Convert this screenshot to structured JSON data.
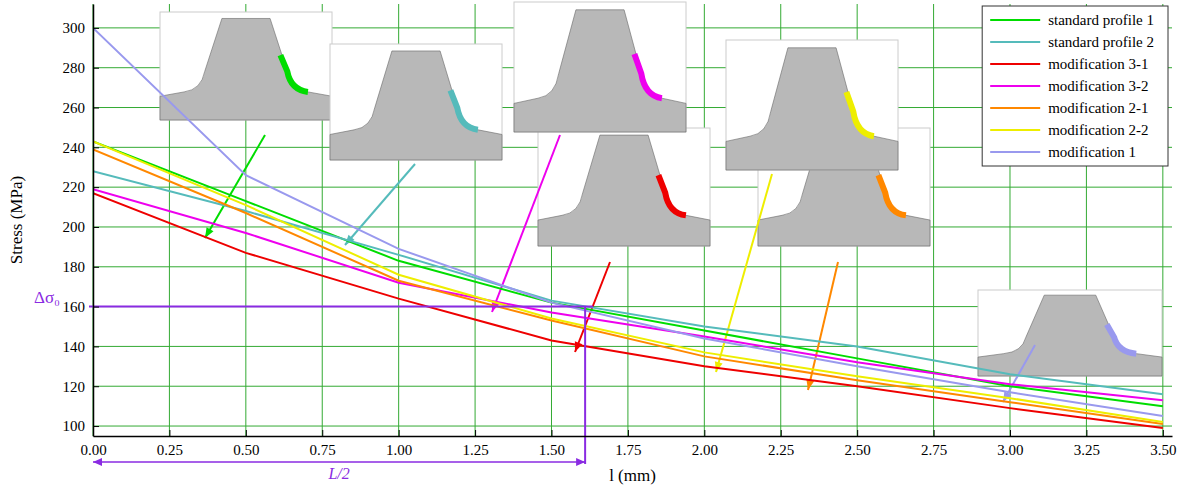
{
  "chart_data": {
    "type": "line",
    "x_label": "l (mm)",
    "y_label": "Stress (MPa)",
    "x": [
      0,
      0.5,
      1,
      1.5,
      2,
      2.5,
      3,
      3.5
    ],
    "xlim": [
      0,
      3.53
    ],
    "ylim": [
      95,
      312
    ],
    "xticks": [
      {
        "value": 0,
        "label": "0.00"
      },
      {
        "value": 0.25,
        "label": "0.25"
      },
      {
        "value": 0.5,
        "label": "0.50"
      },
      {
        "value": 0.75,
        "label": "0.75"
      },
      {
        "value": 1,
        "label": "1.00"
      },
      {
        "value": 1.25,
        "label": "1.25"
      },
      {
        "value": 1.5,
        "label": "1.50"
      },
      {
        "value": 1.75,
        "label": "1.75"
      },
      {
        "value": 2,
        "label": "2.00"
      },
      {
        "value": 2.25,
        "label": "2.25"
      },
      {
        "value": 2.5,
        "label": "2.50"
      },
      {
        "value": 2.75,
        "label": "2.75"
      },
      {
        "value": 3,
        "label": "3.00"
      },
      {
        "value": 3.25,
        "label": "3.25"
      },
      {
        "value": 3.5,
        "label": "3.50"
      }
    ],
    "yticks": [
      100,
      120,
      140,
      160,
      180,
      200,
      220,
      240,
      260,
      280,
      300
    ],
    "grid": true,
    "legend": "top-right",
    "series": [
      {
        "name": "standard profile 1",
        "color": "#00dd00",
        "values": [
          243,
          213,
          183,
          162,
          148,
          134,
          120,
          110
        ]
      },
      {
        "name": "standard profile 2",
        "color": "#55bbbb",
        "values": [
          228,
          208,
          186,
          163,
          150,
          140,
          126,
          116
        ]
      },
      {
        "name": "modification 3-1",
        "color": "#ee0000",
        "values": [
          217,
          187,
          164,
          143,
          130,
          120,
          109,
          99
        ]
      },
      {
        "name": "modification 3-2",
        "color": "#ee00ee",
        "values": [
          219,
          197,
          172,
          157,
          145,
          132,
          121,
          113
        ]
      },
      {
        "name": "modification 2-1",
        "color": "#ff8800",
        "values": [
          239,
          207,
          173,
          153,
          135,
          123,
          112,
          101
        ]
      },
      {
        "name": "modification 2-2",
        "color": "#eeee00",
        "values": [
          243,
          211,
          176,
          154,
          137,
          125,
          114,
          102
        ]
      },
      {
        "name": "modification 1",
        "color": "#9999ee",
        "values": [
          300,
          226,
          189,
          162,
          144,
          130,
          117,
          105
        ]
      }
    ],
    "annotations": [
      {
        "text": "Δσ₀",
        "x": 1.61,
        "y": 160
      },
      {
        "text": "L/2",
        "x": 1.61
      }
    ]
  }
}
